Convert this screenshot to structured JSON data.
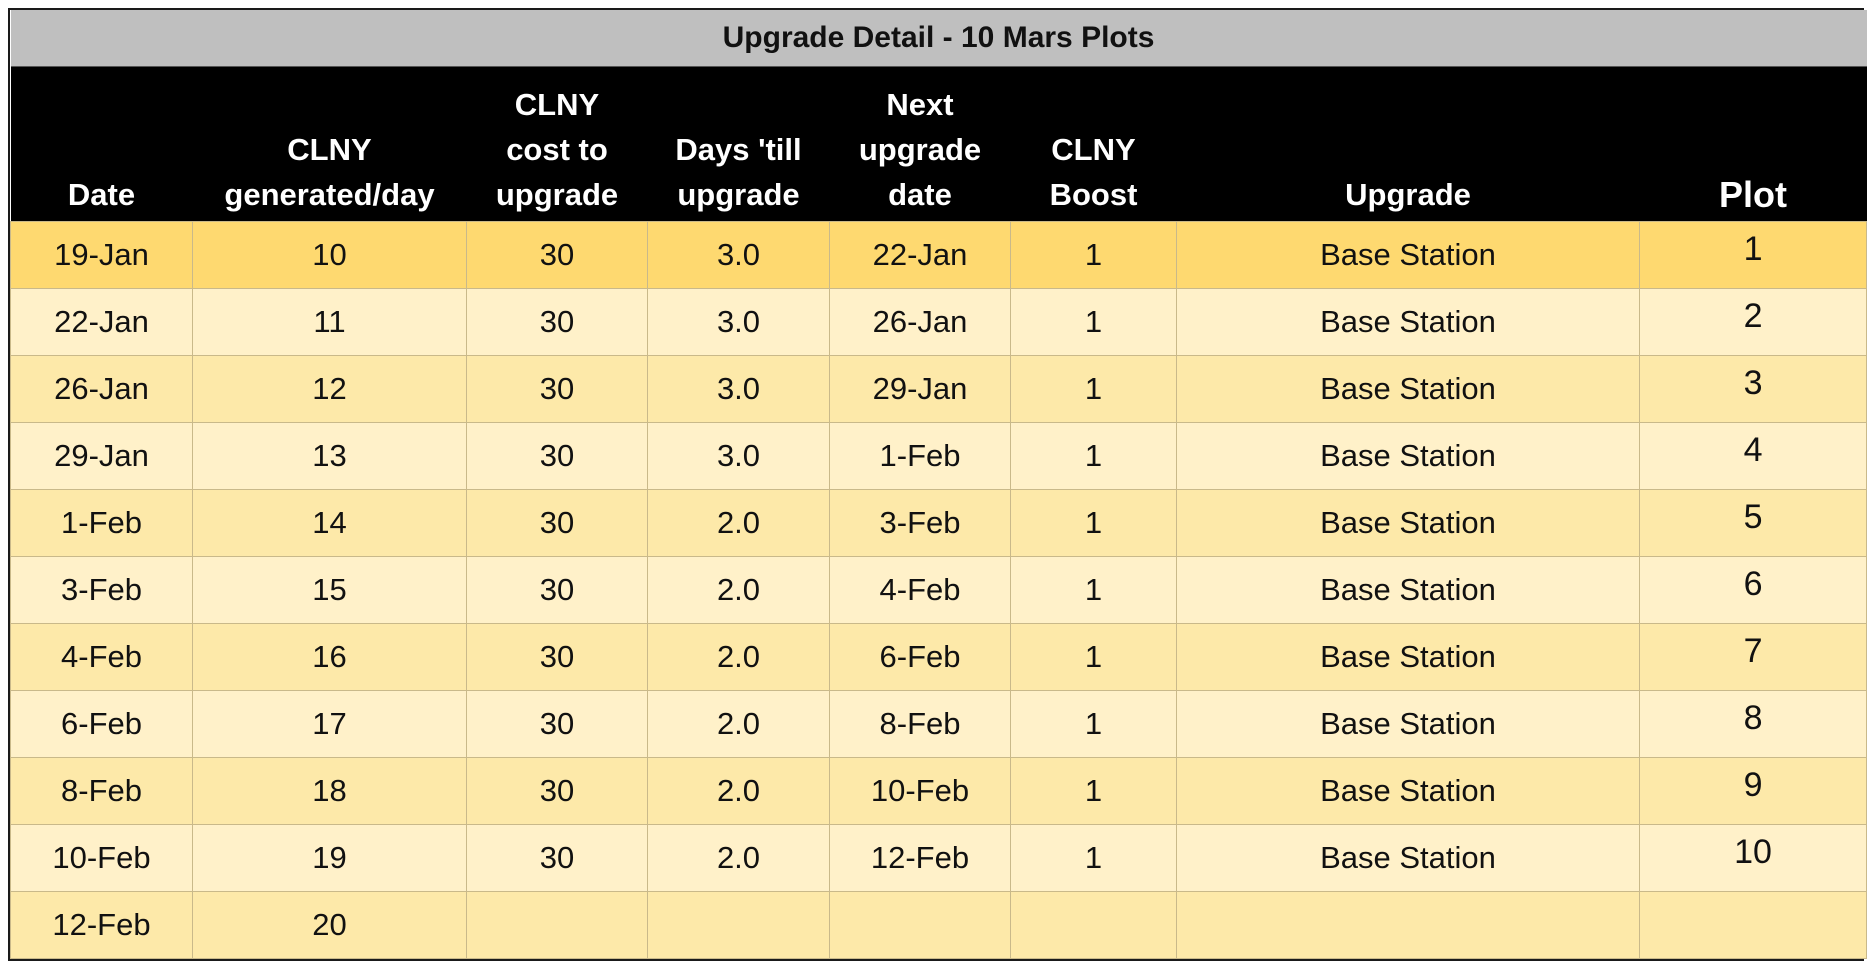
{
  "title": "Upgrade Detail - 10 Mars Plots",
  "columns": [
    [
      "Date"
    ],
    [
      "CLNY",
      "generated/day"
    ],
    [
      "CLNY",
      "cost to",
      "upgrade"
    ],
    [
      "Days 'till",
      "upgrade"
    ],
    [
      "Next",
      "upgrade",
      "date"
    ],
    [
      "CLNY",
      "Boost"
    ],
    [
      "Upgrade"
    ],
    [
      "Plot"
    ]
  ],
  "rows": [
    [
      "19-Jan",
      "10",
      "30",
      "3.0",
      "22-Jan",
      "1",
      "Base Station",
      "1"
    ],
    [
      "22-Jan",
      "11",
      "30",
      "3.0",
      "26-Jan",
      "1",
      "Base Station",
      "2"
    ],
    [
      "26-Jan",
      "12",
      "30",
      "3.0",
      "29-Jan",
      "1",
      "Base Station",
      "3"
    ],
    [
      "29-Jan",
      "13",
      "30",
      "3.0",
      "1-Feb",
      "1",
      "Base Station",
      "4"
    ],
    [
      "1-Feb",
      "14",
      "30",
      "2.0",
      "3-Feb",
      "1",
      "Base Station",
      "5"
    ],
    [
      "3-Feb",
      "15",
      "30",
      "2.0",
      "4-Feb",
      "1",
      "Base Station",
      "6"
    ],
    [
      "4-Feb",
      "16",
      "30",
      "2.0",
      "6-Feb",
      "1",
      "Base Station",
      "7"
    ],
    [
      "6-Feb",
      "17",
      "30",
      "2.0",
      "8-Feb",
      "1",
      "Base Station",
      "8"
    ],
    [
      "8-Feb",
      "18",
      "30",
      "2.0",
      "10-Feb",
      "1",
      "Base Station",
      "9"
    ],
    [
      "10-Feb",
      "19",
      "30",
      "2.0",
      "12-Feb",
      "1",
      "Base Station",
      "10"
    ],
    [
      "12-Feb",
      "20",
      "",
      "",
      "",
      "",
      "",
      ""
    ]
  ],
  "colors": {
    "title_background": "#bfbfbf",
    "header_background": "#000000",
    "header_text": "#ffffff",
    "first_row_fill": "#fed970",
    "odd_row_fill": "#fde9a9",
    "even_row_fill": "#fff1c9"
  }
}
